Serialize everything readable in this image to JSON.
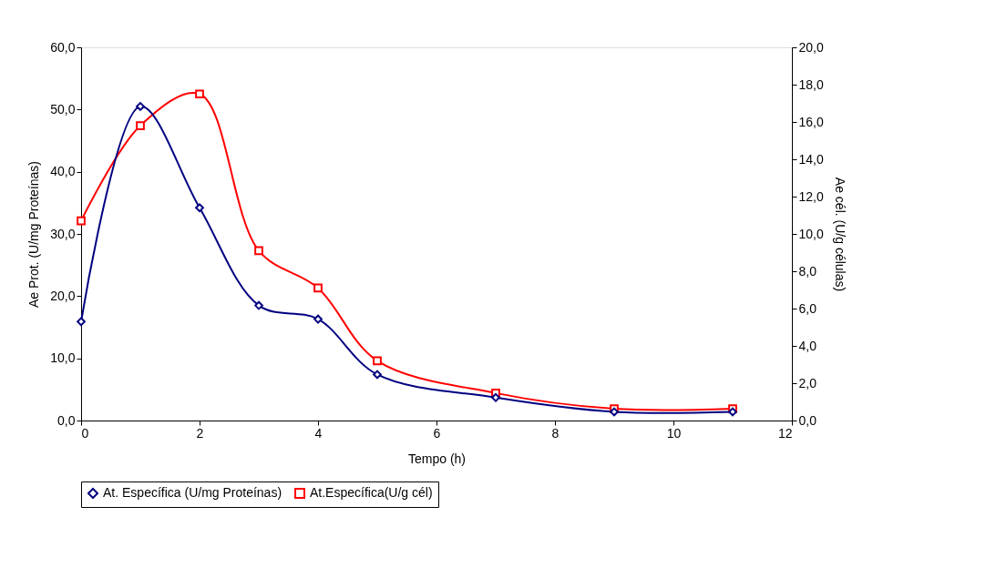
{
  "chart_data": {
    "type": "line",
    "xlabel": "Tempo (h)",
    "ylabel": "Ae Prot. (U/mg Proteínas)",
    "y2label": "Ae cél. (U/g células)",
    "x": [
      0,
      1,
      2,
      3,
      4,
      5,
      7,
      9,
      11
    ],
    "xlim": [
      0,
      12
    ],
    "xticks": [
      0,
      2,
      4,
      6,
      8,
      10,
      12
    ],
    "ylim": [
      0,
      60
    ],
    "yticks": [
      {
        "value": 0,
        "label": "0,0"
      },
      {
        "value": 10,
        "label": "10,0"
      },
      {
        "value": 20,
        "label": "20,0"
      },
      {
        "value": 30,
        "label": "30,0"
      },
      {
        "value": 40,
        "label": "40,0"
      },
      {
        "value": 50,
        "label": "50,0"
      },
      {
        "value": 60,
        "label": "60,0"
      }
    ],
    "y2lim": [
      0,
      20
    ],
    "y2ticks": [
      {
        "value": 0,
        "label": "0,0"
      },
      {
        "value": 2,
        "label": "2,0"
      },
      {
        "value": 4,
        "label": "4,0"
      },
      {
        "value": 6,
        "label": "6,0"
      },
      {
        "value": 8,
        "label": "8,0"
      },
      {
        "value": 10,
        "label": "10,0"
      },
      {
        "value": 12,
        "label": "12,0"
      },
      {
        "value": 14,
        "label": "14,0"
      },
      {
        "value": 16,
        "label": "16,0"
      },
      {
        "value": 18,
        "label": "18,0"
      },
      {
        "value": 20,
        "label": "20,0"
      }
    ],
    "series": [
      {
        "name": "At. Específica (U/mg Proteínas)",
        "color": "#000080",
        "marker": "diamond",
        "values": [
          15.9,
          50.5,
          34.2,
          18.5,
          16.3,
          7.4,
          3.7,
          1.4,
          1.4
        ]
      },
      {
        "name": "At.Específica(U/g cél)",
        "color": "#ff0000",
        "marker": "square",
        "axis": "y2",
        "values": [
          10.7,
          15.8,
          17.5,
          9.1,
          7.1,
          3.2,
          1.47,
          0.63,
          0.63
        ]
      }
    ],
    "grid": false,
    "legend": "bottom",
    "line_style": "solid"
  }
}
